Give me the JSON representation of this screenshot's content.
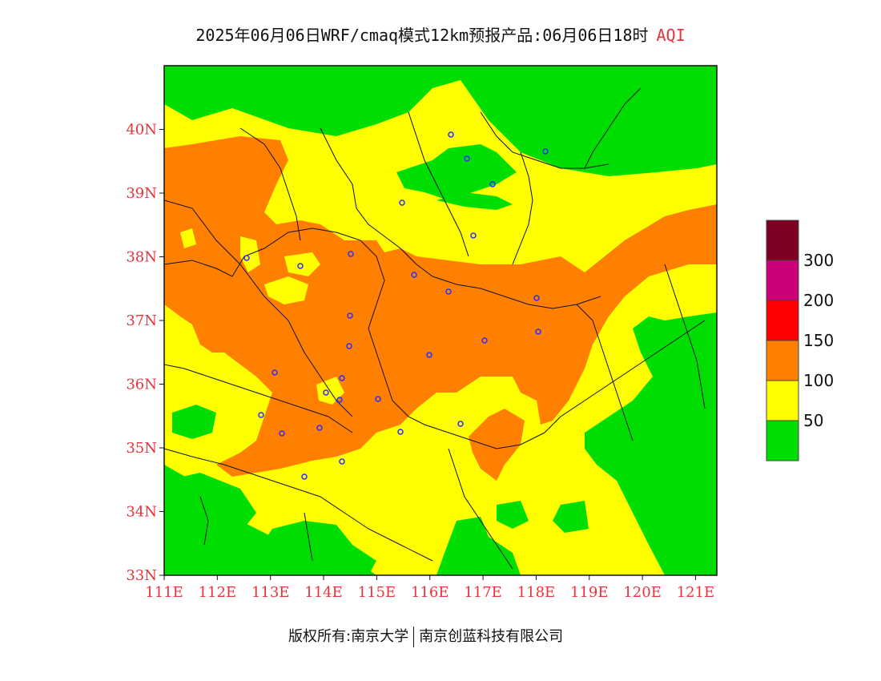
{
  "title": {
    "main": "2025年06月06日WRF/cmaq模式12km预报产品:06月06日18时",
    "suffix": "AQI"
  },
  "map": {
    "lon_ticks": [
      "111E",
      "112E",
      "113E",
      "114E",
      "115E",
      "116E",
      "117E",
      "118E",
      "119E",
      "120E",
      "121E"
    ],
    "lat_ticks": [
      "33N",
      "34N",
      "35N",
      "36N",
      "37N",
      "38N",
      "39N",
      "40N"
    ],
    "extent": {
      "lon_min": 111,
      "lon_max": 121.4,
      "lat_min": 33,
      "lat_max": 41
    }
  },
  "legend": {
    "labels": [
      "50",
      "100",
      "150",
      "200",
      "300"
    ],
    "colors": [
      "#00dd00",
      "#ffff00",
      "#ff7f00",
      "#ff0000",
      "#cc0077",
      "#7d0023"
    ]
  },
  "credit": {
    "left": "版权所有:南京大学",
    "right": "南京创蓝科技有限公司"
  }
}
